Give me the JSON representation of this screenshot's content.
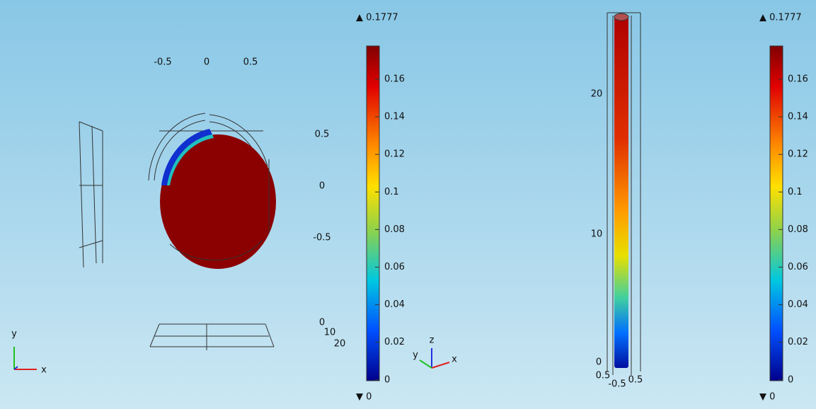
{
  "left_view": {
    "max_label": "▲ 0.1777",
    "min_label": "▼ 0",
    "colorbar_ticks": [
      "0.16",
      "0.14",
      "0.12",
      "0.1",
      "0.08",
      "0.06",
      "0.04",
      "0.02",
      "0"
    ],
    "x_ticks": [
      "-0.5",
      "0",
      "0.5"
    ],
    "y_ticks": [
      "0.5",
      "0",
      "-0.5"
    ],
    "z_ticks": [
      "0",
      "10",
      "20"
    ],
    "axes": [
      "y",
      "x"
    ]
  },
  "right_view": {
    "max_label": "▲ 0.1777",
    "min_label": "▼ 0",
    "colorbar_ticks": [
      "0.16",
      "0.14",
      "0.12",
      "0.1",
      "0.08",
      "0.06",
      "0.04",
      "0.02",
      "0"
    ],
    "z_ticks": [
      "20",
      "10",
      "0"
    ],
    "xy_ticks": [
      "0.5",
      "-0.5",
      "0.5"
    ],
    "axes": [
      "z",
      "y",
      "x"
    ]
  }
}
